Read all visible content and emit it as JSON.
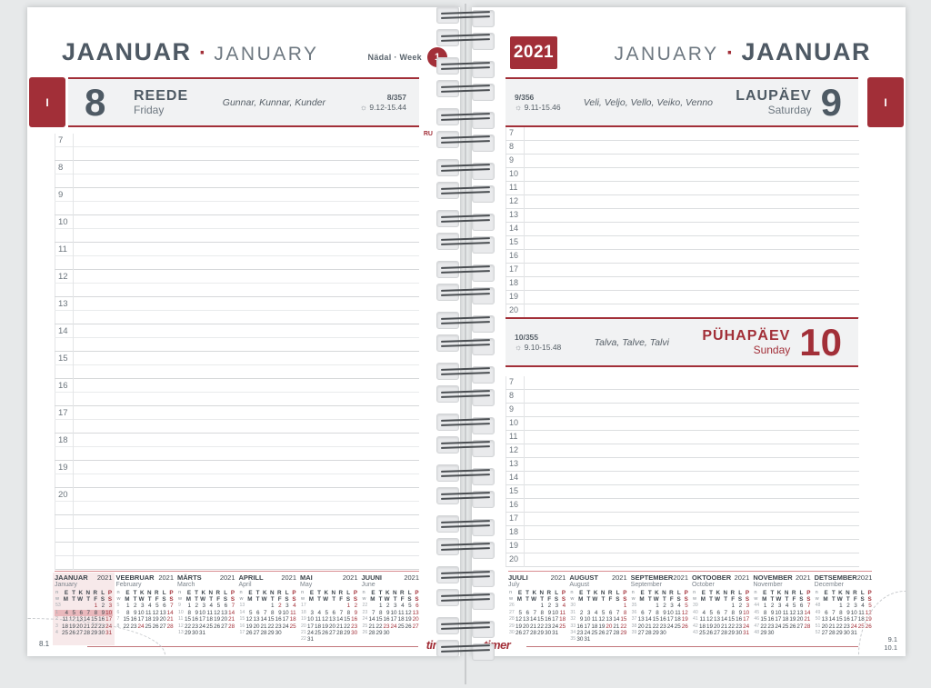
{
  "accent_color": "#a22f38",
  "ink_color": "#4e5964",
  "icons": {
    "sun": "☼"
  },
  "footer": {
    "logo": "timer"
  },
  "left_page": {
    "month_header": {
      "primary": "JAANUAR",
      "separator": "·",
      "secondary": "JANUARY"
    },
    "week_label": "Nädal · Week",
    "week_number": "1",
    "tab_label": "I",
    "day": {
      "number": "8",
      "weekday_et": "REEDE",
      "weekday_en": "Friday",
      "names": "Gunnar, Kunnar, Kunder",
      "day_of_year": "8/357",
      "sun_times": "9.12-15.44",
      "corner_note": "RU"
    },
    "hours": [
      "7",
      "8",
      "9",
      "10",
      "11",
      "12",
      "13",
      "14",
      "15",
      "16",
      "17",
      "18",
      "19",
      "20"
    ],
    "extra_rows": 4,
    "page_number": "8.1"
  },
  "right_page": {
    "year_badge": "2021",
    "month_header": {
      "primary": "JANUARY",
      "separator": "·",
      "secondary": "JAANUAR"
    },
    "tab_label": "I",
    "saturday": {
      "number": "9",
      "weekday_et": "LAUPÄEV",
      "weekday_en": "Saturday",
      "names": "Veli, Veljo, Vello, Veiko, Venno",
      "day_of_year": "9/356",
      "sun_times": "9.11-15.46"
    },
    "sunday": {
      "number": "10",
      "weekday_et": "PÜHAPÄEV",
      "weekday_en": "Sunday",
      "names": "Talva, Talve, Talvi",
      "day_of_year": "10/355",
      "sun_times": "9.10-15.48"
    },
    "hours": [
      "7",
      "8",
      "9",
      "10",
      "11",
      "12",
      "13",
      "14",
      "15",
      "16",
      "17",
      "18",
      "19",
      "20"
    ],
    "page_numbers": [
      "9.1",
      "10.1"
    ]
  },
  "mini_calendars": {
    "week_col_headers": [
      "n",
      "w"
    ],
    "weekday_header_et": [
      "E",
      "T",
      "K",
      "N",
      "R",
      "L",
      "P"
    ],
    "weekday_header_en": [
      "M",
      "T",
      "W",
      "T",
      "F",
      "S",
      "S"
    ],
    "left": [
      {
        "name_et": "JAANUAR",
        "name_en": "January",
        "year": "2021",
        "highlight": true,
        "red": [
          1,
          3,
          10,
          17,
          24,
          31
        ],
        "weeks": [
          {
            "n": "53",
            "d": [
              "",
              "",
              "",
              "",
              "1",
              "2",
              "3"
            ]
          },
          {
            "n": "1",
            "d": [
              "4",
              "5",
              "6",
              "7",
              "8",
              "9",
              "10"
            ],
            "hl": true
          },
          {
            "n": "2",
            "d": [
              "11",
              "12",
              "13",
              "14",
              "15",
              "16",
              "17"
            ]
          },
          {
            "n": "3",
            "d": [
              "18",
              "19",
              "20",
              "21",
              "22",
              "23",
              "24"
            ]
          },
          {
            "n": "4",
            "d": [
              "25",
              "26",
              "27",
              "28",
              "29",
              "30",
              "31"
            ]
          }
        ]
      },
      {
        "name_et": "VEEBRUAR",
        "name_en": "February",
        "year": "2021",
        "red": [
          7,
          14,
          21,
          24,
          28
        ],
        "weeks": [
          {
            "n": "5",
            "d": [
              "1",
              "2",
              "3",
              "4",
              "5",
              "6",
              "7"
            ]
          },
          {
            "n": "6",
            "d": [
              "8",
              "9",
              "10",
              "11",
              "12",
              "13",
              "14"
            ]
          },
          {
            "n": "7",
            "d": [
              "15",
              "16",
              "17",
              "18",
              "19",
              "20",
              "21"
            ]
          },
          {
            "n": "8",
            "d": [
              "22",
              "23",
              "24",
              "25",
              "26",
              "27",
              "28"
            ]
          }
        ]
      },
      {
        "name_et": "MÄRTS",
        "name_en": "March",
        "year": "2021",
        "red": [
          7,
          14,
          21,
          28
        ],
        "weeks": [
          {
            "n": "9",
            "d": [
              "1",
              "2",
              "3",
              "4",
              "5",
              "6",
              "7"
            ]
          },
          {
            "n": "10",
            "d": [
              "8",
              "9",
              "10",
              "11",
              "12",
              "13",
              "14"
            ]
          },
          {
            "n": "11",
            "d": [
              "15",
              "16",
              "17",
              "18",
              "19",
              "20",
              "21"
            ]
          },
          {
            "n": "12",
            "d": [
              "22",
              "23",
              "24",
              "25",
              "26",
              "27",
              "28"
            ]
          },
          {
            "n": "13",
            "d": [
              "29",
              "30",
              "31",
              "",
              "",
              "",
              ""
            ]
          }
        ]
      },
      {
        "name_et": "APRILL",
        "name_en": "April",
        "year": "2021",
        "red": [
          2,
          4,
          11,
          18,
          25
        ],
        "weeks": [
          {
            "n": "13",
            "d": [
              "",
              "",
              "",
              "1",
              "2",
              "3",
              "4"
            ]
          },
          {
            "n": "14",
            "d": [
              "5",
              "6",
              "7",
              "8",
              "9",
              "10",
              "11"
            ]
          },
          {
            "n": "15",
            "d": [
              "12",
              "13",
              "14",
              "15",
              "16",
              "17",
              "18"
            ]
          },
          {
            "n": "16",
            "d": [
              "19",
              "20",
              "21",
              "22",
              "23",
              "24",
              "25"
            ]
          },
          {
            "n": "17",
            "d": [
              "26",
              "27",
              "28",
              "29",
              "30",
              "",
              ""
            ]
          }
        ]
      },
      {
        "name_et": "MAI",
        "name_en": "May",
        "year": "2021",
        "red": [
          1,
          2,
          9,
          16,
          23,
          30
        ],
        "weeks": [
          {
            "n": "17",
            "d": [
              "",
              "",
              "",
              "",
              "",
              "1",
              "2"
            ]
          },
          {
            "n": "18",
            "d": [
              "3",
              "4",
              "5",
              "6",
              "7",
              "8",
              "9"
            ]
          },
          {
            "n": "19",
            "d": [
              "10",
              "11",
              "12",
              "13",
              "14",
              "15",
              "16"
            ]
          },
          {
            "n": "20",
            "d": [
              "17",
              "18",
              "19",
              "20",
              "21",
              "22",
              "23"
            ]
          },
          {
            "n": "21",
            "d": [
              "24",
              "25",
              "26",
              "27",
              "28",
              "29",
              "30"
            ]
          },
          {
            "n": "22",
            "d": [
              "31",
              "",
              "",
              "",
              "",
              "",
              ""
            ]
          }
        ]
      },
      {
        "name_et": "JUUNI",
        "name_en": "June",
        "year": "2021",
        "red": [
          6,
          13,
          20,
          23,
          24,
          27
        ],
        "weeks": [
          {
            "n": "22",
            "d": [
              "",
              "1",
              "2",
              "3",
              "4",
              "5",
              "6"
            ]
          },
          {
            "n": "23",
            "d": [
              "7",
              "8",
              "9",
              "10",
              "11",
              "12",
              "13"
            ]
          },
          {
            "n": "24",
            "d": [
              "14",
              "15",
              "16",
              "17",
              "18",
              "19",
              "20"
            ]
          },
          {
            "n": "25",
            "d": [
              "21",
              "22",
              "23",
              "24",
              "25",
              "26",
              "27"
            ]
          },
          {
            "n": "26",
            "d": [
              "28",
              "29",
              "30",
              "",
              "",
              "",
              ""
            ]
          }
        ]
      }
    ],
    "right": [
      {
        "name_et": "JUULI",
        "name_en": "July",
        "year": "2021",
        "red": [
          4,
          11,
          18,
          25
        ],
        "weeks": [
          {
            "n": "26",
            "d": [
              "",
              "",
              "",
              "1",
              "2",
              "3",
              "4"
            ]
          },
          {
            "n": "27",
            "d": [
              "5",
              "6",
              "7",
              "8",
              "9",
              "10",
              "11"
            ]
          },
          {
            "n": "28",
            "d": [
              "12",
              "13",
              "14",
              "15",
              "16",
              "17",
              "18"
            ]
          },
          {
            "n": "29",
            "d": [
              "19",
              "20",
              "21",
              "22",
              "23",
              "24",
              "25"
            ]
          },
          {
            "n": "30",
            "d": [
              "26",
              "27",
              "28",
              "29",
              "30",
              "31",
              ""
            ]
          }
        ]
      },
      {
        "name_et": "AUGUST",
        "name_en": "August",
        "year": "2021",
        "red": [
          1,
          8,
          15,
          20,
          22,
          29
        ],
        "weeks": [
          {
            "n": "30",
            "d": [
              "",
              "",
              "",
              "",
              "",
              "",
              "1"
            ]
          },
          {
            "n": "31",
            "d": [
              "2",
              "3",
              "4",
              "5",
              "6",
              "7",
              "8"
            ]
          },
          {
            "n": "32",
            "d": [
              "9",
              "10",
              "11",
              "12",
              "13",
              "14",
              "15"
            ]
          },
          {
            "n": "33",
            "d": [
              "16",
              "17",
              "18",
              "19",
              "20",
              "21",
              "22"
            ]
          },
          {
            "n": "34",
            "d": [
              "23",
              "24",
              "25",
              "26",
              "27",
              "28",
              "29"
            ]
          },
          {
            "n": "35",
            "d": [
              "30",
              "31",
              "",
              "",
              "",
              "",
              ""
            ]
          }
        ]
      },
      {
        "name_et": "SEPTEMBER",
        "name_en": "September",
        "year": "2021",
        "red": [
          5,
          12,
          19,
          26
        ],
        "weeks": [
          {
            "n": "35",
            "d": [
              "",
              "",
              "1",
              "2",
              "3",
              "4",
              "5"
            ]
          },
          {
            "n": "36",
            "d": [
              "6",
              "7",
              "8",
              "9",
              "10",
              "11",
              "12"
            ]
          },
          {
            "n": "37",
            "d": [
              "13",
              "14",
              "15",
              "16",
              "17",
              "18",
              "19"
            ]
          },
          {
            "n": "38",
            "d": [
              "20",
              "21",
              "22",
              "23",
              "24",
              "25",
              "26"
            ]
          },
          {
            "n": "39",
            "d": [
              "27",
              "28",
              "29",
              "30",
              "",
              "",
              ""
            ]
          }
        ]
      },
      {
        "name_et": "OKTOOBER",
        "name_en": "October",
        "year": "2021",
        "red": [
          3,
          10,
          17,
          24,
          31
        ],
        "weeks": [
          {
            "n": "39",
            "d": [
              "",
              "",
              "",
              "",
              "1",
              "2",
              "3"
            ]
          },
          {
            "n": "40",
            "d": [
              "4",
              "5",
              "6",
              "7",
              "8",
              "9",
              "10"
            ]
          },
          {
            "n": "41",
            "d": [
              "11",
              "12",
              "13",
              "14",
              "15",
              "16",
              "17"
            ]
          },
          {
            "n": "42",
            "d": [
              "18",
              "19",
              "20",
              "21",
              "22",
              "23",
              "24"
            ]
          },
          {
            "n": "43",
            "d": [
              "25",
              "26",
              "27",
              "28",
              "29",
              "30",
              "31"
            ]
          }
        ]
      },
      {
        "name_et": "NOVEMBER",
        "name_en": "November",
        "year": "2021",
        "red": [
          7,
          14,
          21,
          28
        ],
        "weeks": [
          {
            "n": "44",
            "d": [
              "1",
              "2",
              "3",
              "4",
              "5",
              "6",
              "7"
            ]
          },
          {
            "n": "45",
            "d": [
              "8",
              "9",
              "10",
              "11",
              "12",
              "13",
              "14"
            ]
          },
          {
            "n": "46",
            "d": [
              "15",
              "16",
              "17",
              "18",
              "19",
              "20",
              "21"
            ]
          },
          {
            "n": "47",
            "d": [
              "22",
              "23",
              "24",
              "25",
              "26",
              "27",
              "28"
            ]
          },
          {
            "n": "48",
            "d": [
              "29",
              "30",
              "",
              "",
              "",
              "",
              ""
            ]
          }
        ]
      },
      {
        "name_et": "DETSEMBER",
        "name_en": "December",
        "year": "2021",
        "red": [
          5,
          12,
          19,
          24,
          25,
          26
        ],
        "weeks": [
          {
            "n": "48",
            "d": [
              "",
              "",
              "1",
              "2",
              "3",
              "4",
              "5"
            ]
          },
          {
            "n": "49",
            "d": [
              "6",
              "7",
              "8",
              "9",
              "10",
              "11",
              "12"
            ]
          },
          {
            "n": "50",
            "d": [
              "13",
              "14",
              "15",
              "16",
              "17",
              "18",
              "19"
            ]
          },
          {
            "n": "51",
            "d": [
              "20",
              "21",
              "22",
              "23",
              "24",
              "25",
              "26"
            ]
          },
          {
            "n": "52",
            "d": [
              "27",
              "28",
              "29",
              "30",
              "31",
              "",
              ""
            ]
          }
        ]
      }
    ]
  }
}
